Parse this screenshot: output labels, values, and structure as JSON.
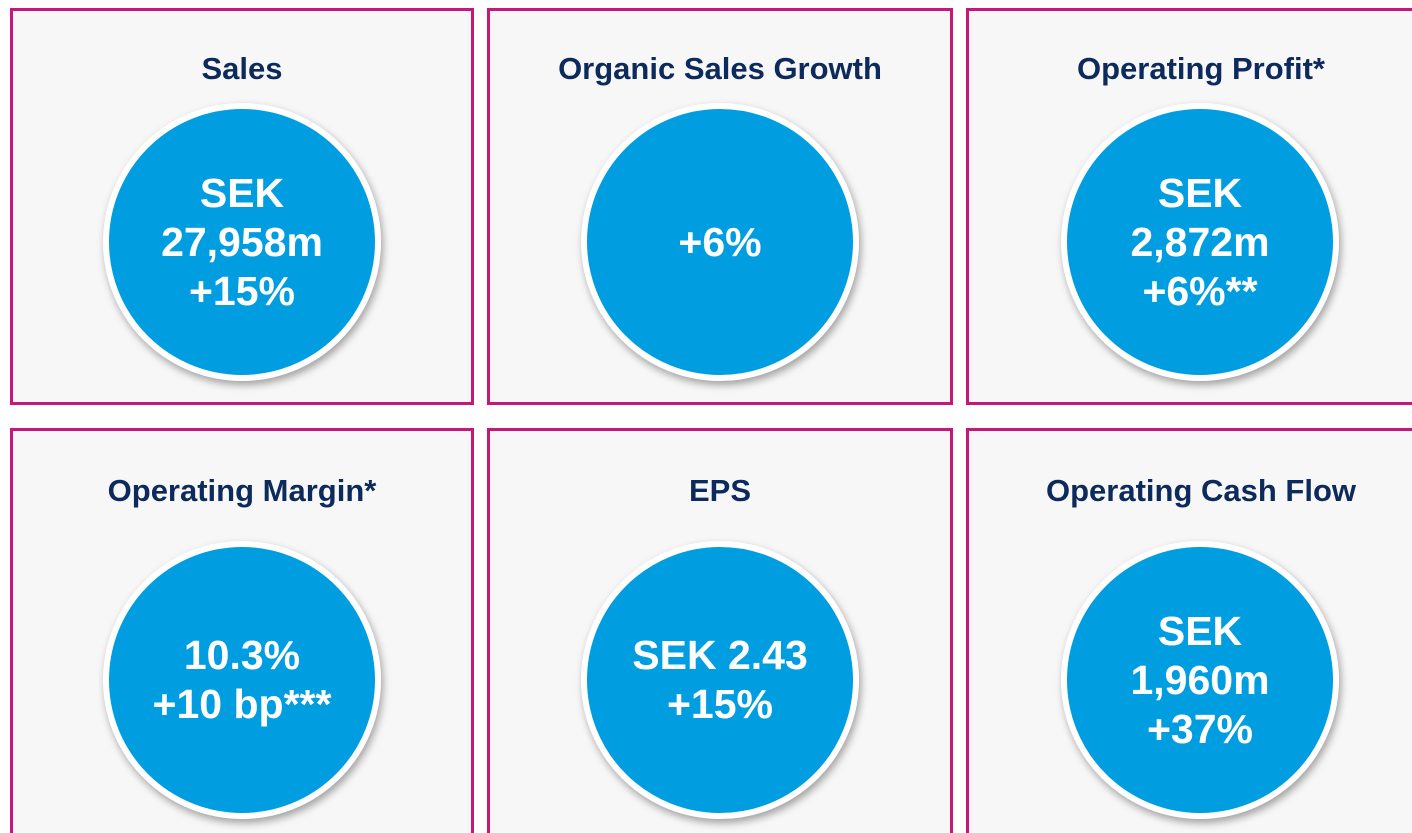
{
  "tiles": [
    {
      "title": "Sales",
      "lines": [
        "SEK",
        "27,958m",
        "+15%"
      ]
    },
    {
      "title": "Organic Sales Growth",
      "lines": [
        "+6%"
      ]
    },
    {
      "title": "Operating Profit*",
      "lines": [
        "SEK",
        "2,872m",
        "+6%**"
      ]
    },
    {
      "title": "Operating Margin*",
      "lines": [
        "10.3%",
        "+10 bp***"
      ]
    },
    {
      "title": "EPS",
      "lines": [
        "SEK 2.43",
        "+15%"
      ]
    },
    {
      "title": "Operating Cash Flow",
      "lines": [
        "SEK",
        "1,960m",
        "+37%"
      ]
    }
  ]
}
